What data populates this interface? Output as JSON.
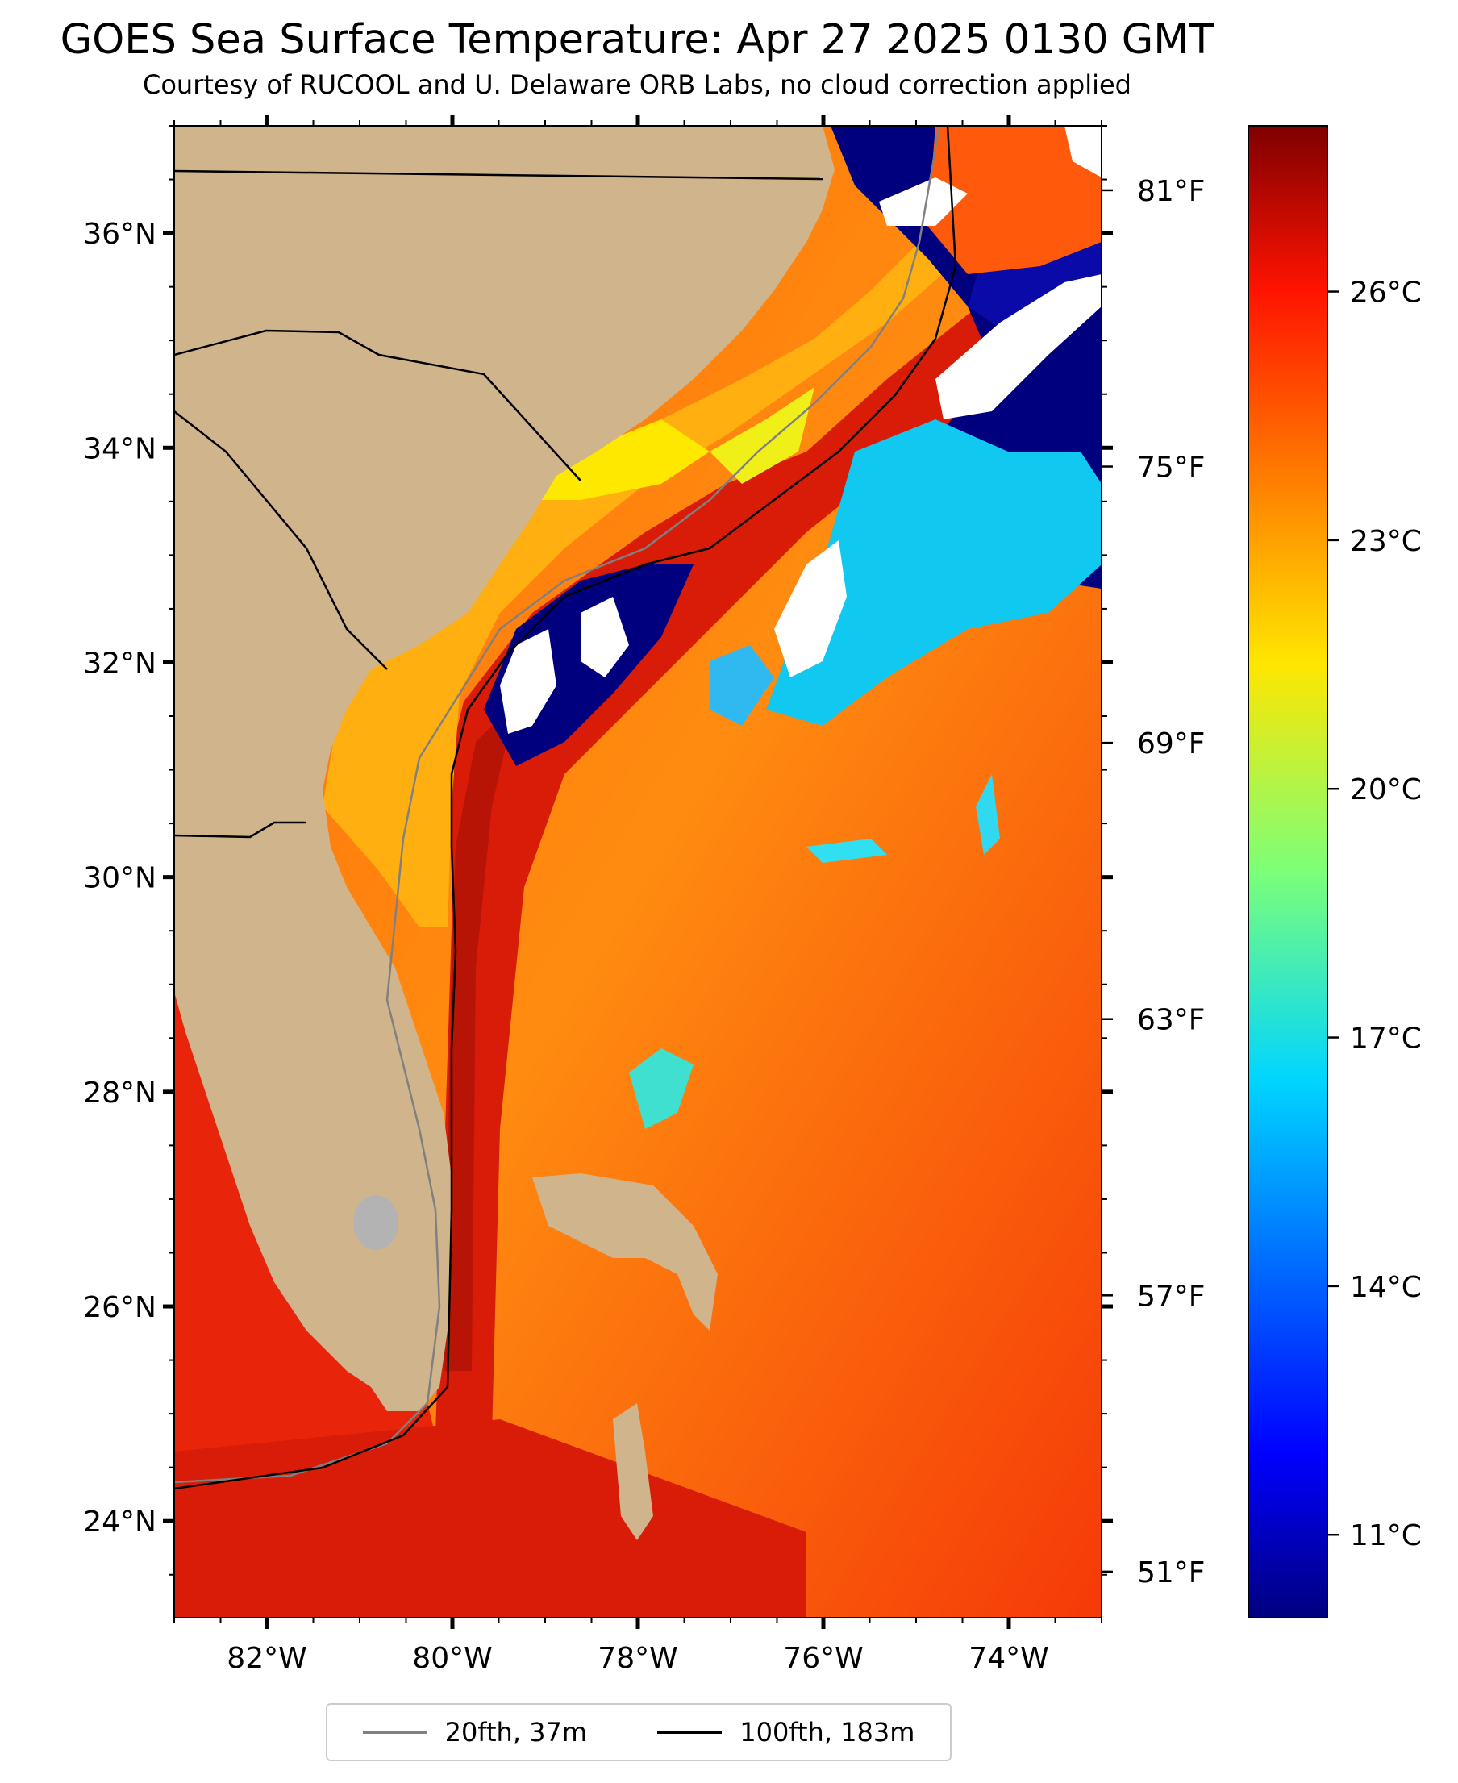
{
  "title": "GOES Sea Surface Temperature: Apr 27 2025 0130 GMT",
  "subtitle": "Courtesy of RUCOOL and U. Delaware ORB Labs, no cloud correction applied",
  "map": {
    "lon_range": [
      -83,
      -73
    ],
    "lat_range": [
      23.1,
      37
    ],
    "lon_ticks": [
      {
        "value": -82,
        "label": "82°W"
      },
      {
        "value": -80,
        "label": "80°W"
      },
      {
        "value": -78,
        "label": "78°W"
      },
      {
        "value": -76,
        "label": "76°W"
      },
      {
        "value": -74,
        "label": "74°W"
      }
    ],
    "lat_ticks": [
      {
        "value": 24,
        "label": "24°N"
      },
      {
        "value": 26,
        "label": "26°N"
      },
      {
        "value": 28,
        "label": "28°N"
      },
      {
        "value": 30,
        "label": "30°N"
      },
      {
        "value": 32,
        "label": "32°N"
      },
      {
        "value": 34,
        "label": "34°N"
      },
      {
        "value": 36,
        "label": "36°N"
      }
    ],
    "fahrenheit_ticks": [
      "81°F",
      "75°F",
      "69°F",
      "63°F",
      "57°F",
      "51°F"
    ],
    "colors": {
      "land": "#CFB48C",
      "cloud_mask": "#FFFFFF",
      "gulf_stream": "#D81C08",
      "warm_water": "#FF7A0E",
      "shelf_water": "#FFC010",
      "cold_water": "#00007F",
      "cool_water": "#10D8F0"
    }
  },
  "colorbar": {
    "colormap": "jet",
    "vmin": 10,
    "vmax": 28,
    "ticks": [
      {
        "value": 11,
        "label": "11°C"
      },
      {
        "value": 14,
        "label": "14°C"
      },
      {
        "value": 17,
        "label": "17°C"
      },
      {
        "value": 20,
        "label": "20°C"
      },
      {
        "value": 23,
        "label": "23°C"
      },
      {
        "value": 26,
        "label": "26°C"
      }
    ]
  },
  "legend": {
    "items": [
      {
        "label": "20fth, 37m",
        "color": "#808080"
      },
      {
        "label": "100fth, 183m",
        "color": "#000000"
      }
    ]
  }
}
